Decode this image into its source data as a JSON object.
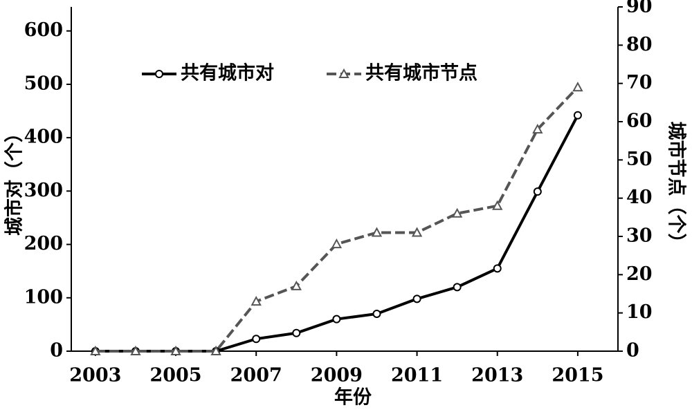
{
  "chart_data": {
    "type": "line",
    "x_label": "年份",
    "y_label": "城市对（个）",
    "y2_label": "城市节点（个）",
    "x": [
      2003,
      2004,
      2005,
      2006,
      2007,
      2008,
      2009,
      2010,
      2011,
      2012,
      2013,
      2014,
      2015
    ],
    "xlim": [
      2002.4,
      2016
    ],
    "xticks": [
      2003,
      2005,
      2007,
      2009,
      2011,
      2013,
      2015
    ],
    "ylim": [
      0,
      645
    ],
    "yticks": [
      0,
      100,
      200,
      300,
      400,
      500,
      600
    ],
    "y2lim": [
      0,
      90
    ],
    "y2ticks": [
      0,
      10,
      20,
      30,
      40,
      50,
      60,
      70,
      80,
      90
    ],
    "legend": "top-left",
    "series": [
      {
        "name": "共有城市对",
        "color": "#000000",
        "dash": "solid",
        "marker": "circle",
        "values": [
          0,
          0,
          0,
          0,
          23,
          34,
          60,
          70,
          98,
          120,
          155,
          299,
          442
        ]
      },
      {
        "name": "共有城市节点",
        "color": "#555555",
        "dash": "dashed",
        "marker": "triangle",
        "axis": "y2",
        "values": [
          0,
          0,
          0,
          0,
          13,
          17,
          28,
          31,
          31,
          36,
          38,
          58,
          69
        ]
      }
    ]
  }
}
